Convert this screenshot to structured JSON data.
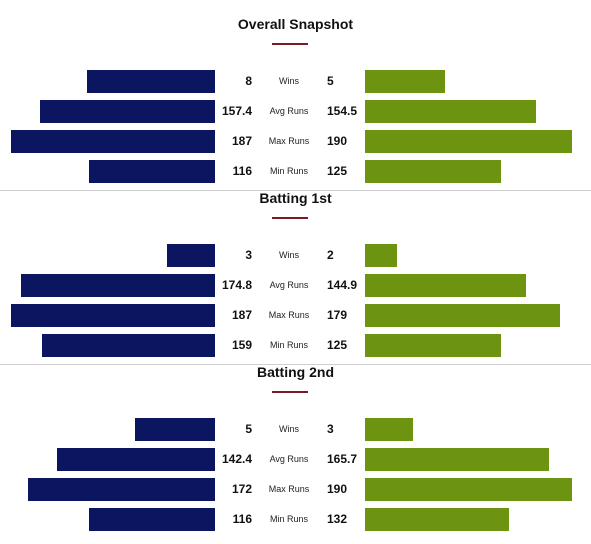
{
  "colors": {
    "left_bar": "#0b1560",
    "right_bar": "#6d9410",
    "underline": "#7a1a23",
    "divider": "#cfcfcf"
  },
  "chart_data": [
    {
      "type": "bar",
      "orientation": "horizontal-butterfly",
      "title": "Overall Snapshot",
      "categories": [
        "Wins",
        "Avg Runs",
        "Max Runs",
        "Min Runs"
      ],
      "series": [
        {
          "values": [
            8,
            157.4,
            187,
            116
          ]
        },
        {
          "values": [
            5,
            154.5,
            190,
            125
          ]
        }
      ]
    },
    {
      "type": "bar",
      "orientation": "horizontal-butterfly",
      "title": "Batting 1st",
      "categories": [
        "Wins",
        "Avg Runs",
        "Max Runs",
        "Min Runs"
      ],
      "series": [
        {
          "values": [
            3,
            174.8,
            187,
            159
          ]
        },
        {
          "values": [
            2,
            144.9,
            179,
            125
          ]
        }
      ]
    },
    {
      "type": "bar",
      "orientation": "horizontal-butterfly",
      "title": "Batting 2nd",
      "categories": [
        "Wins",
        "Avg Runs",
        "Max Runs",
        "Min Runs"
      ],
      "series": [
        {
          "values": [
            5,
            142.4,
            172,
            116
          ]
        },
        {
          "values": [
            3,
            165.7,
            190,
            132
          ]
        }
      ]
    }
  ]
}
